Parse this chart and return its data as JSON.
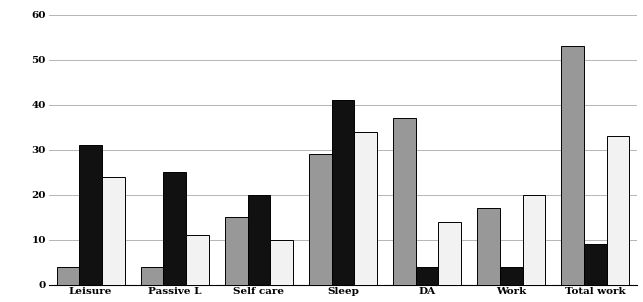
{
  "categories": [
    "Leisure",
    "Passive L",
    "Self care",
    "Sleep",
    "DA",
    "Work",
    "Total work"
  ],
  "series": {
    "gray": [
      4,
      4,
      15,
      29,
      37,
      17,
      53
    ],
    "black": [
      31,
      25,
      20,
      41,
      4,
      4,
      9
    ],
    "white": [
      24,
      11,
      10,
      34,
      14,
      20,
      33
    ]
  },
  "colors": {
    "gray": "#989898",
    "black": "#111111",
    "white": "#f2f2f2"
  },
  "bar_edge_color": "#000000",
  "bar_edge_width": 0.7,
  "ylim": [
    0,
    62
  ],
  "yticks": [
    0,
    10,
    20,
    30,
    40,
    50,
    60
  ],
  "grid_color": "#aaaaaa",
  "background_color": "#ffffff",
  "bar_width": 0.27,
  "tick_fontsize": 7.5,
  "figsize": [
    6.43,
    3.02
  ],
  "dpi": 100
}
